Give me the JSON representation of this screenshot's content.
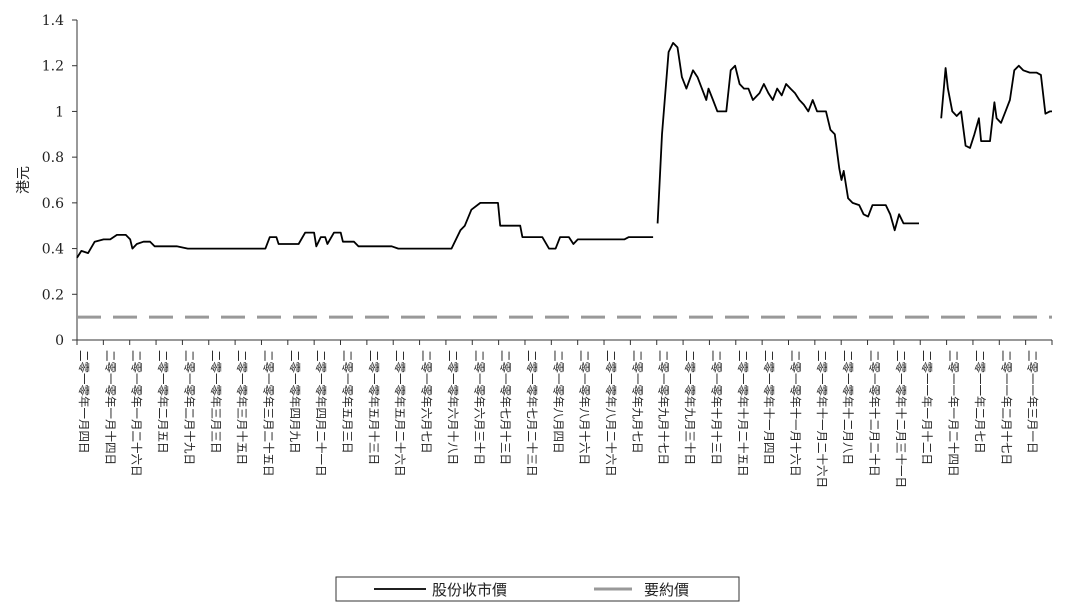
{
  "chart_data": {
    "type": "line",
    "ylabel": "港元",
    "ylim": [
      0,
      1.4
    ],
    "yticks": [
      {
        "value": 0,
        "label": "0"
      },
      {
        "value": 0.2,
        "label": "0.2"
      },
      {
        "value": 0.4,
        "label": "0.4"
      },
      {
        "value": 0.6,
        "label": "0.6"
      },
      {
        "value": 0.8,
        "label": "0.8"
      },
      {
        "value": 1.0,
        "label": "1"
      },
      {
        "value": 1.2,
        "label": "1.2"
      },
      {
        "value": 1.4,
        "label": "1.4"
      }
    ],
    "categories": [
      "二零一零年一月四日",
      "二零一零年一月十四日",
      "二零一零年一月二十六日",
      "二零一零年二月五日",
      "二零一零年二月十九日",
      "二零一零年三月三日",
      "二零一零年三月十五日",
      "二零一零年三月二十五日",
      "二零一零年四月九日",
      "二零一零年四月二十一日",
      "二零一零年五月三日",
      "二零一零年五月十三日",
      "二零一零年五月二十六日",
      "二零一零年六月七日",
      "二零一零年六月十八日",
      "二零一零年六月三十日",
      "二零一零年七月十三日",
      "二零一零年七月二十三日",
      "二零一零年八月四日",
      "二零一零年八月十六日",
      "二零一零年八月二十六日",
      "二零一零年九月七日",
      "二零一零年九月十七日",
      "二零一零年九月三十日",
      "二零一零年十月十三日",
      "二零一零年十月二十五日",
      "二零一零年十一月四日",
      "二零一零年十一月十六日",
      "二零一零年十一月二十六日",
      "二零一零年十二月八日",
      "二零一零年十二月二十日",
      "二零一零年十二月三十一日",
      "二零一一年一月十二日",
      "二零一一年一月二十四日",
      "二零一一年二月七日",
      "二零一一年二月十七日",
      "二零一一年三月一日"
    ],
    "series": [
      {
        "name": "股份收市價",
        "style": "solid",
        "color": "#000000",
        "segments": [
          [
            [
              0,
              0.36
            ],
            [
              0.2,
              0.39
            ],
            [
              0.5,
              0.38
            ],
            [
              0.8,
              0.43
            ],
            [
              1.2,
              0.44
            ],
            [
              1.5,
              0.44
            ],
            [
              1.8,
              0.46
            ],
            [
              2.2,
              0.46
            ],
            [
              2.4,
              0.44
            ],
            [
              2.5,
              0.4
            ],
            [
              2.7,
              0.42
            ],
            [
              3.0,
              0.43
            ],
            [
              3.3,
              0.43
            ],
            [
              3.5,
              0.41
            ],
            [
              4.0,
              0.41
            ],
            [
              4.5,
              0.41
            ],
            [
              5.0,
              0.4
            ],
            [
              6.0,
              0.4
            ],
            [
              7.0,
              0.4
            ],
            [
              8.0,
              0.4
            ],
            [
              8.5,
              0.4
            ],
            [
              8.7,
              0.45
            ],
            [
              9.0,
              0.45
            ],
            [
              9.1,
              0.42
            ],
            [
              9.5,
              0.42
            ],
            [
              10.0,
              0.42
            ],
            [
              10.3,
              0.47
            ],
            [
              10.7,
              0.47
            ],
            [
              10.8,
              0.41
            ],
            [
              11.0,
              0.45
            ],
            [
              11.2,
              0.45
            ],
            [
              11.3,
              0.42
            ],
            [
              11.6,
              0.47
            ],
            [
              11.9,
              0.47
            ],
            [
              12.0,
              0.43
            ],
            [
              12.5,
              0.43
            ],
            [
              12.7,
              0.41
            ],
            [
              13.5,
              0.41
            ],
            [
              14.2,
              0.41
            ],
            [
              14.5,
              0.4
            ],
            [
              15.5,
              0.4
            ],
            [
              16.5,
              0.4
            ],
            [
              16.9,
              0.4
            ],
            [
              17.3,
              0.48
            ],
            [
              17.5,
              0.5
            ],
            [
              17.8,
              0.57
            ],
            [
              18.2,
              0.6
            ],
            [
              19.0,
              0.6
            ],
            [
              19.1,
              0.5
            ],
            [
              19.5,
              0.5
            ],
            [
              20.0,
              0.5
            ],
            [
              20.1,
              0.45
            ],
            [
              21.0,
              0.45
            ],
            [
              21.3,
              0.4
            ],
            [
              21.6,
              0.4
            ],
            [
              21.8,
              0.45
            ],
            [
              22.2,
              0.45
            ],
            [
              22.4,
              0.42
            ],
            [
              22.6,
              0.44
            ],
            [
              23.5,
              0.44
            ],
            [
              24.0,
              0.44
            ],
            [
              24.7,
              0.44
            ],
            [
              24.9,
              0.45
            ],
            [
              26.0,
              0.45
            ]
          ],
          [
            [
              26.2,
              0.51
            ],
            [
              26.4,
              0.9
            ],
            [
              26.7,
              1.26
            ],
            [
              26.9,
              1.3
            ],
            [
              27.1,
              1.28
            ],
            [
              27.3,
              1.15
            ],
            [
              27.5,
              1.1
            ],
            [
              27.8,
              1.18
            ],
            [
              28.0,
              1.15
            ],
            [
              28.2,
              1.1
            ],
            [
              28.4,
              1.05
            ],
            [
              28.5,
              1.1
            ],
            [
              28.7,
              1.05
            ],
            [
              28.9,
              1.0
            ],
            [
              29.3,
              1.0
            ],
            [
              29.5,
              1.18
            ],
            [
              29.7,
              1.2
            ],
            [
              29.9,
              1.12
            ],
            [
              30.1,
              1.1
            ],
            [
              30.3,
              1.1
            ],
            [
              30.5,
              1.05
            ],
            [
              30.8,
              1.08
            ],
            [
              31.0,
              1.12
            ],
            [
              31.2,
              1.08
            ],
            [
              31.4,
              1.05
            ],
            [
              31.6,
              1.1
            ],
            [
              31.8,
              1.07
            ],
            [
              32.0,
              1.12
            ],
            [
              32.2,
              1.1
            ],
            [
              32.4,
              1.08
            ],
            [
              32.6,
              1.05
            ],
            [
              32.8,
              1.03
            ],
            [
              33.0,
              1.0
            ],
            [
              33.2,
              1.05
            ],
            [
              33.4,
              1.0
            ],
            [
              33.8,
              1.0
            ],
            [
              34.0,
              0.92
            ],
            [
              34.2,
              0.9
            ],
            [
              34.4,
              0.75
            ],
            [
              34.5,
              0.7
            ],
            [
              34.6,
              0.74
            ],
            [
              34.8,
              0.62
            ],
            [
              35.0,
              0.6
            ],
            [
              35.3,
              0.59
            ],
            [
              35.5,
              0.55
            ],
            [
              35.7,
              0.54
            ],
            [
              35.9,
              0.59
            ],
            [
              36.2,
              0.59
            ],
            [
              36.5,
              0.59
            ],
            [
              36.7,
              0.55
            ],
            [
              36.9,
              0.48
            ],
            [
              37.1,
              0.55
            ],
            [
              37.3,
              0.51
            ],
            [
              38.0,
              0.51
            ]
          ],
          [
            [
              39.0,
              0.97
            ],
            [
              39.2,
              1.19
            ],
            [
              39.3,
              1.1
            ],
            [
              39.5,
              1.0
            ],
            [
              39.7,
              0.98
            ],
            [
              39.9,
              1.0
            ],
            [
              40.1,
              0.85
            ],
            [
              40.3,
              0.84
            ],
            [
              40.5,
              0.9
            ],
            [
              40.7,
              0.97
            ],
            [
              40.8,
              0.87
            ],
            [
              41.0,
              0.87
            ],
            [
              41.2,
              0.87
            ],
            [
              41.4,
              1.04
            ],
            [
              41.5,
              0.97
            ],
            [
              41.7,
              0.95
            ],
            [
              41.9,
              1.0
            ],
            [
              42.1,
              1.05
            ],
            [
              42.3,
              1.18
            ],
            [
              42.5,
              1.2
            ],
            [
              42.7,
              1.18
            ],
            [
              43.0,
              1.17
            ],
            [
              43.3,
              1.17
            ],
            [
              43.5,
              1.16
            ],
            [
              43.7,
              0.99
            ],
            [
              43.9,
              1.0
            ],
            [
              44.0,
              1.0
            ]
          ]
        ]
      },
      {
        "name": "要約價",
        "style": "dashed",
        "color": "#999999",
        "segments": [
          [
            [
              0,
              0.1
            ],
            [
              44.0,
              0.1
            ]
          ]
        ]
      }
    ],
    "legend": {
      "position": "bottom-center",
      "entries": [
        {
          "label": "股份收市價",
          "style": "solid",
          "color": "#000000"
        },
        {
          "label": "要約價",
          "style": "dashed",
          "color": "#999999"
        }
      ]
    },
    "grid": false
  }
}
